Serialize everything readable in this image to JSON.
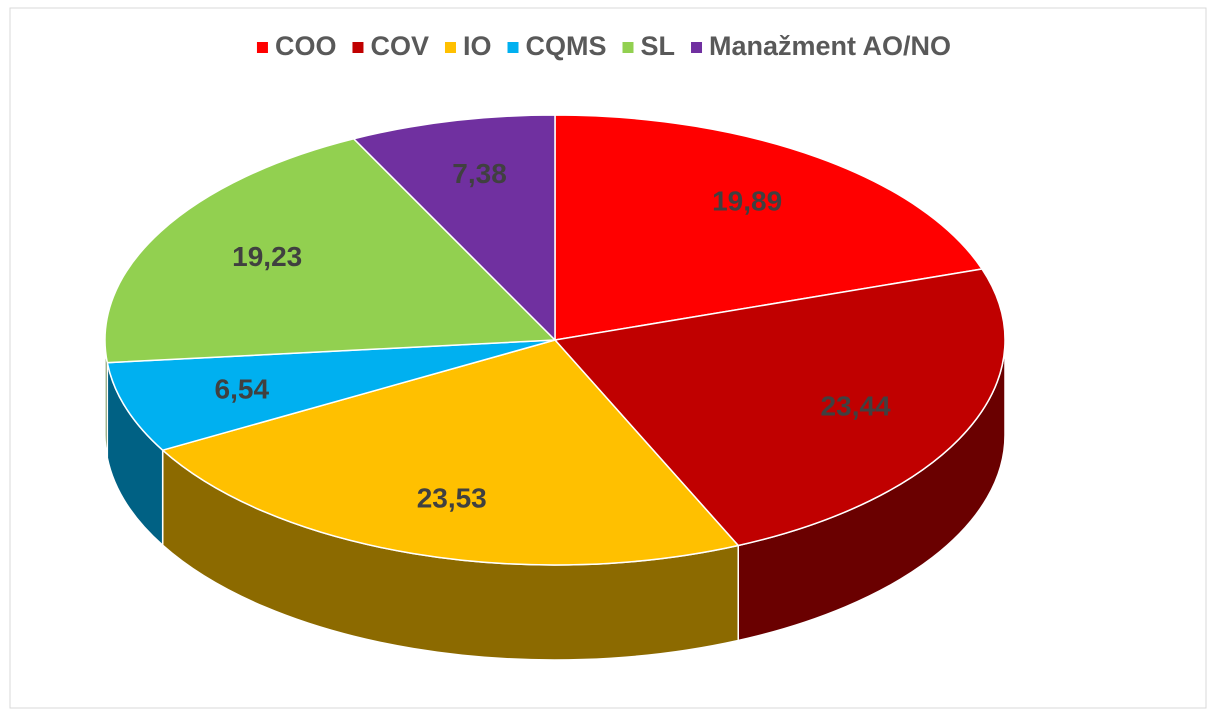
{
  "chart_data": {
    "type": "pie",
    "categories": [
      "COO",
      "COV",
      "IO",
      "CQMS",
      "SL",
      "Manažment AO/NO"
    ],
    "values": [
      19.89,
      23.44,
      23.53,
      6.54,
      19.23,
      7.38
    ],
    "value_labels": [
      "19,89",
      "23,44",
      "23,53",
      "6,54",
      "19,23",
      "7,38"
    ],
    "colors": [
      "#ff0000",
      "#c00000",
      "#ffc000",
      "#00b0f0",
      "#92d050",
      "#7030a0"
    ],
    "legend": "top"
  }
}
